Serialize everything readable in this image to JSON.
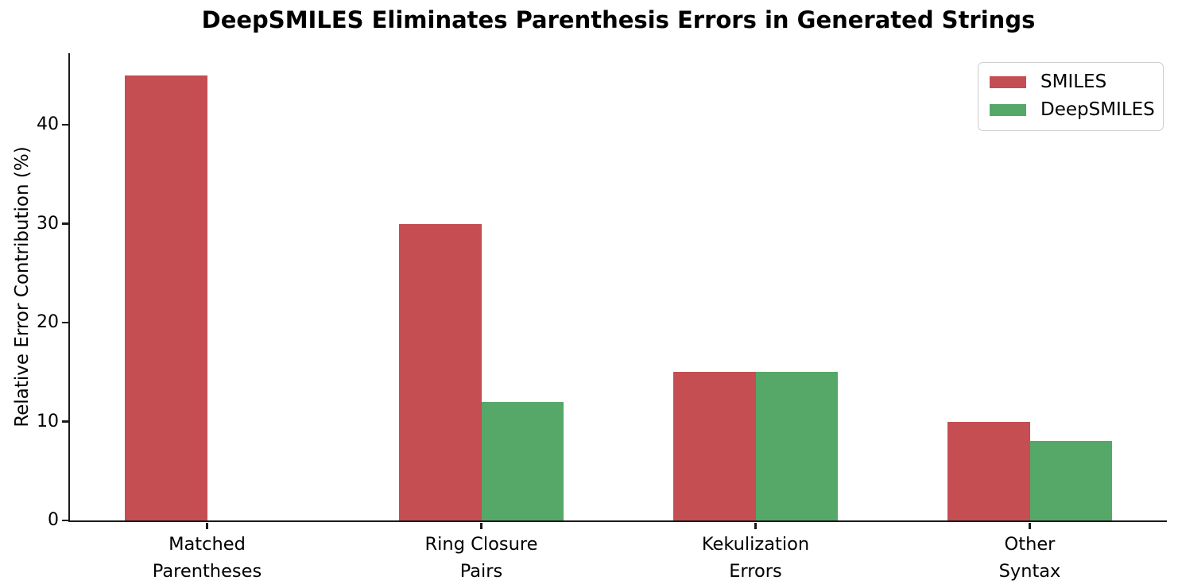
{
  "chart_data": {
    "type": "bar",
    "title": "DeepSMILES Eliminates Parenthesis Errors in Generated Strings",
    "xlabel": "",
    "ylabel": "Relative Error Contribution (%)",
    "categories": [
      "Matched\nParentheses",
      "Ring Closure\nPairs",
      "Kekulization\nErrors",
      "Other\nSyntax"
    ],
    "series": [
      {
        "name": "SMILES",
        "color": "#c44e52",
        "values": [
          45,
          30,
          15,
          10
        ]
      },
      {
        "name": "DeepSMILES",
        "color": "#55a868",
        "values": [
          0,
          12,
          15,
          8
        ]
      }
    ],
    "yticks": [
      0,
      10,
      20,
      30,
      40
    ],
    "ylim": [
      0,
      47.25
    ],
    "grid": false,
    "legend_position": "upper right",
    "spine_color": "#1a1a1a",
    "background_color": "#ffffff"
  }
}
